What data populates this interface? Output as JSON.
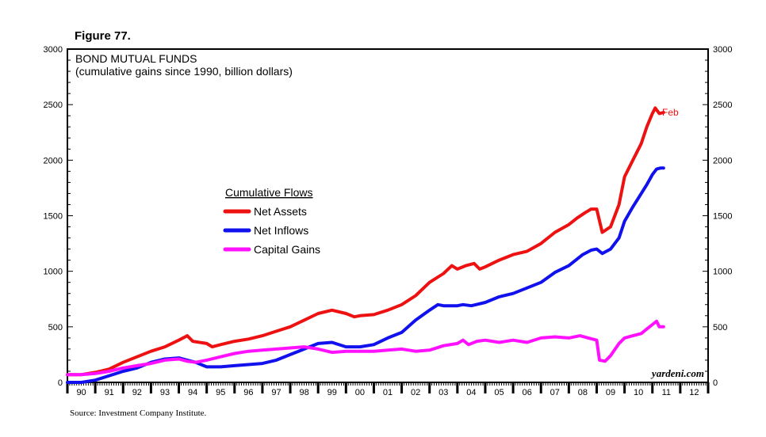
{
  "figure_label": "Figure 77.",
  "source_note": "Source: Investment Company Institute.",
  "watermark": "yardeni.com",
  "chart_data": {
    "type": "line",
    "title": "BOND MUTUAL FUNDS",
    "subtitle": "(cumulative gains since 1990, billion dollars)",
    "legend_title": "Cumulative Flows",
    "end_label": "Feb",
    "y_ticks": [
      "0",
      "500",
      "1000",
      "1500",
      "2000",
      "2500",
      "3000"
    ],
    "ylim": [
      0,
      3000
    ],
    "x_tick_labels": [
      "90",
      "91",
      "92",
      "93",
      "94",
      "95",
      "96",
      "97",
      "98",
      "99",
      "00",
      "01",
      "02",
      "03",
      "04",
      "05",
      "06",
      "07",
      "08",
      "09",
      "10",
      "11",
      "12"
    ],
    "xlim": [
      1990,
      2013
    ],
    "grid": false,
    "colors": {
      "net_assets": "#ee1111",
      "net_inflows": "#1111ee",
      "capital_gains": "#ff11ff"
    },
    "series": [
      {
        "name": "Net Assets",
        "color": "#ee1111",
        "points": [
          [
            1990.0,
            70
          ],
          [
            1990.5,
            70
          ],
          [
            1991.0,
            90
          ],
          [
            1991.5,
            120
          ],
          [
            1992.0,
            180
          ],
          [
            1992.5,
            230
          ],
          [
            1993.0,
            280
          ],
          [
            1993.5,
            320
          ],
          [
            1994.0,
            380
          ],
          [
            1994.3,
            420
          ],
          [
            1994.5,
            370
          ],
          [
            1995.0,
            350
          ],
          [
            1995.2,
            320
          ],
          [
            1995.5,
            340
          ],
          [
            1996.0,
            370
          ],
          [
            1996.5,
            390
          ],
          [
            1997.0,
            420
          ],
          [
            1997.5,
            460
          ],
          [
            1998.0,
            500
          ],
          [
            1998.5,
            560
          ],
          [
            1999.0,
            620
          ],
          [
            1999.5,
            650
          ],
          [
            2000.0,
            620
          ],
          [
            2000.3,
            590
          ],
          [
            2000.5,
            600
          ],
          [
            2001.0,
            610
          ],
          [
            2001.5,
            650
          ],
          [
            2002.0,
            700
          ],
          [
            2002.5,
            780
          ],
          [
            2003.0,
            900
          ],
          [
            2003.5,
            980
          ],
          [
            2003.8,
            1050
          ],
          [
            2004.0,
            1020
          ],
          [
            2004.3,
            1050
          ],
          [
            2004.6,
            1070
          ],
          [
            2004.8,
            1020
          ],
          [
            2005.0,
            1040
          ],
          [
            2005.5,
            1100
          ],
          [
            2006.0,
            1150
          ],
          [
            2006.5,
            1180
          ],
          [
            2007.0,
            1250
          ],
          [
            2007.5,
            1350
          ],
          [
            2008.0,
            1420
          ],
          [
            2008.3,
            1480
          ],
          [
            2008.6,
            1530
          ],
          [
            2008.8,
            1560
          ],
          [
            2009.0,
            1560
          ],
          [
            2009.2,
            1350
          ],
          [
            2009.5,
            1400
          ],
          [
            2009.8,
            1600
          ],
          [
            2010.0,
            1850
          ],
          [
            2010.3,
            2000
          ],
          [
            2010.6,
            2150
          ],
          [
            2010.8,
            2300
          ],
          [
            2011.0,
            2420
          ],
          [
            2011.1,
            2470
          ],
          [
            2011.25,
            2420
          ],
          [
            2011.4,
            2430
          ]
        ]
      },
      {
        "name": "Net Inflows",
        "color": "#1111ee",
        "points": [
          [
            1990.0,
            0
          ],
          [
            1990.5,
            0
          ],
          [
            1991.0,
            20
          ],
          [
            1991.5,
            60
          ],
          [
            1992.0,
            100
          ],
          [
            1992.5,
            130
          ],
          [
            1993.0,
            180
          ],
          [
            1993.5,
            210
          ],
          [
            1994.0,
            220
          ],
          [
            1994.3,
            200
          ],
          [
            1994.6,
            180
          ],
          [
            1995.0,
            140
          ],
          [
            1995.5,
            140
          ],
          [
            1996.0,
            150
          ],
          [
            1996.5,
            160
          ],
          [
            1997.0,
            170
          ],
          [
            1997.5,
            200
          ],
          [
            1998.0,
            250
          ],
          [
            1998.5,
            300
          ],
          [
            1999.0,
            350
          ],
          [
            1999.5,
            360
          ],
          [
            2000.0,
            320
          ],
          [
            2000.5,
            320
          ],
          [
            2001.0,
            340
          ],
          [
            2001.5,
            400
          ],
          [
            2002.0,
            450
          ],
          [
            2002.5,
            560
          ],
          [
            2003.0,
            650
          ],
          [
            2003.3,
            700
          ],
          [
            2003.5,
            690
          ],
          [
            2004.0,
            690
          ],
          [
            2004.2,
            700
          ],
          [
            2004.5,
            690
          ],
          [
            2005.0,
            720
          ],
          [
            2005.5,
            770
          ],
          [
            2006.0,
            800
          ],
          [
            2006.5,
            850
          ],
          [
            2007.0,
            900
          ],
          [
            2007.5,
            990
          ],
          [
            2008.0,
            1050
          ],
          [
            2008.5,
            1150
          ],
          [
            2008.8,
            1190
          ],
          [
            2009.0,
            1200
          ],
          [
            2009.2,
            1160
          ],
          [
            2009.5,
            1200
          ],
          [
            2009.8,
            1300
          ],
          [
            2010.0,
            1450
          ],
          [
            2010.3,
            1580
          ],
          [
            2010.6,
            1700
          ],
          [
            2010.8,
            1780
          ],
          [
            2011.0,
            1870
          ],
          [
            2011.15,
            1920
          ],
          [
            2011.3,
            1930
          ],
          [
            2011.4,
            1930
          ]
        ]
      },
      {
        "name": "Capital Gains",
        "color": "#ff11ff",
        "points": [
          [
            1990.0,
            70
          ],
          [
            1990.5,
            70
          ],
          [
            1991.0,
            80
          ],
          [
            1991.5,
            100
          ],
          [
            1992.0,
            130
          ],
          [
            1992.5,
            150
          ],
          [
            1993.0,
            170
          ],
          [
            1993.5,
            200
          ],
          [
            1994.0,
            210
          ],
          [
            1994.3,
            190
          ],
          [
            1994.6,
            180
          ],
          [
            1995.0,
            200
          ],
          [
            1995.5,
            230
          ],
          [
            1996.0,
            260
          ],
          [
            1996.5,
            280
          ],
          [
            1997.0,
            290
          ],
          [
            1997.5,
            300
          ],
          [
            1998.0,
            310
          ],
          [
            1998.5,
            320
          ],
          [
            1999.0,
            300
          ],
          [
            1999.5,
            270
          ],
          [
            2000.0,
            280
          ],
          [
            2000.5,
            280
          ],
          [
            2001.0,
            280
          ],
          [
            2001.5,
            290
          ],
          [
            2002.0,
            300
          ],
          [
            2002.5,
            280
          ],
          [
            2003.0,
            290
          ],
          [
            2003.5,
            330
          ],
          [
            2004.0,
            350
          ],
          [
            2004.2,
            380
          ],
          [
            2004.4,
            340
          ],
          [
            2004.7,
            370
          ],
          [
            2005.0,
            380
          ],
          [
            2005.5,
            360
          ],
          [
            2006.0,
            380
          ],
          [
            2006.5,
            360
          ],
          [
            2007.0,
            400
          ],
          [
            2007.5,
            410
          ],
          [
            2008.0,
            400
          ],
          [
            2008.4,
            420
          ],
          [
            2008.7,
            400
          ],
          [
            2009.0,
            380
          ],
          [
            2009.1,
            200
          ],
          [
            2009.3,
            190
          ],
          [
            2009.5,
            240
          ],
          [
            2009.8,
            350
          ],
          [
            2010.0,
            400
          ],
          [
            2010.3,
            420
          ],
          [
            2010.6,
            440
          ],
          [
            2010.8,
            480
          ],
          [
            2011.0,
            520
          ],
          [
            2011.15,
            550
          ],
          [
            2011.25,
            500
          ],
          [
            2011.4,
            500
          ]
        ]
      }
    ]
  }
}
